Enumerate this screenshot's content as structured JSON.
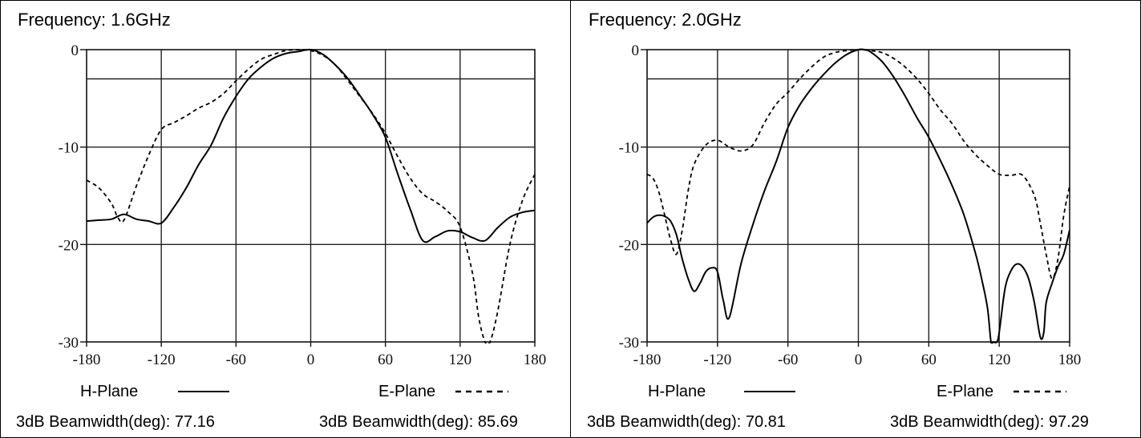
{
  "panels": [
    {
      "frequency_label": "Frequency: 1.6GHz",
      "legend": {
        "h_plane": "H-Plane",
        "e_plane": "E-Plane"
      },
      "beamwidths": {
        "h_plane": "3dB Beamwidth(deg): 77.16",
        "e_plane": "3dB Beamwidth(deg): 85.69"
      }
    },
    {
      "frequency_label": "Frequency: 2.0GHz",
      "legend": {
        "h_plane": "H-Plane",
        "e_plane": "E-Plane"
      },
      "beamwidths": {
        "h_plane": "3dB Beamwidth(deg): 70.81",
        "e_plane": "3dB Beamwidth(deg): 97.29"
      }
    }
  ],
  "chart_data": [
    {
      "type": "line",
      "title": "Frequency: 1.6GHz",
      "xlim": [
        -180,
        180
      ],
      "ylim": [
        -30,
        0
      ],
      "x_ticks": [
        -180,
        -120,
        -60,
        0,
        60,
        120,
        180
      ],
      "y_ticks": [
        0,
        -10,
        -20,
        -30
      ],
      "y_tick_labels": [
        "0",
        "-10",
        "-20",
        "-30"
      ],
      "x_tick_labels": [
        "-180",
        "-120",
        "-60",
        "0",
        "60",
        "120",
        "180"
      ],
      "reference_line_y": -3,
      "grid": true,
      "series": [
        {
          "name": "H-Plane",
          "style": "solid",
          "x": [
            -180,
            -170,
            -160,
            -150,
            -140,
            -130,
            -120,
            -110,
            -100,
            -90,
            -80,
            -70,
            -60,
            -50,
            -40,
            -30,
            -20,
            -10,
            0,
            10,
            20,
            30,
            40,
            50,
            60,
            70,
            80,
            90,
            100,
            110,
            120,
            130,
            140,
            150,
            160,
            170,
            180
          ],
          "y": [
            -17.6,
            -17.5,
            -17.4,
            -16.9,
            -17.4,
            -17.6,
            -17.8,
            -16.2,
            -14.2,
            -11.8,
            -9.8,
            -7.0,
            -4.8,
            -3.0,
            -1.8,
            -0.9,
            -0.4,
            -0.2,
            0.0,
            -0.5,
            -1.6,
            -3.0,
            -4.8,
            -6.7,
            -9.0,
            -12.8,
            -16.4,
            -19.6,
            -19.2,
            -18.6,
            -18.7,
            -19.3,
            -19.6,
            -18.3,
            -17.2,
            -16.7,
            -16.5
          ]
        },
        {
          "name": "E-Plane",
          "style": "dashed",
          "x": [
            -180,
            -170,
            -160,
            -155,
            -150,
            -140,
            -130,
            -120,
            -110,
            -100,
            -90,
            -80,
            -70,
            -60,
            -50,
            -40,
            -30,
            -20,
            -10,
            0,
            10,
            20,
            30,
            40,
            50,
            60,
            70,
            80,
            90,
            100,
            110,
            120,
            130,
            135,
            140,
            144,
            150,
            160,
            170,
            180
          ],
          "y": [
            -13.4,
            -14.2,
            -15.8,
            -17.2,
            -17.5,
            -14.0,
            -10.8,
            -8.2,
            -7.5,
            -6.8,
            -6.0,
            -5.4,
            -4.5,
            -3.2,
            -2.0,
            -1.0,
            -0.5,
            -0.1,
            0.0,
            -0.1,
            -0.6,
            -1.6,
            -3.2,
            -4.9,
            -6.6,
            -8.6,
            -11.0,
            -13.2,
            -14.8,
            -15.6,
            -16.6,
            -18.2,
            -23.0,
            -27.5,
            -30.0,
            -30.0,
            -27.0,
            -20.0,
            -15.5,
            -12.8
          ]
        }
      ]
    },
    {
      "type": "line",
      "title": "Frequency: 2.0GHz",
      "xlim": [
        -180,
        180
      ],
      "ylim": [
        -30,
        0
      ],
      "x_ticks": [
        -180,
        -120,
        -60,
        0,
        60,
        120,
        180
      ],
      "y_ticks": [
        0,
        -10,
        -20,
        -30
      ],
      "y_tick_labels": [
        "0",
        "-10",
        "-20",
        "-30"
      ],
      "x_tick_labels": [
        "-180",
        "-120",
        "-60",
        "0",
        "60",
        "120",
        "180"
      ],
      "reference_line_y": -3,
      "grid": true,
      "series": [
        {
          "name": "H-Plane",
          "style": "solid",
          "x": [
            -180,
            -175,
            -170,
            -165,
            -160,
            -155,
            -150,
            -145,
            -140,
            -135,
            -130,
            -125,
            -120,
            -115,
            -110,
            -100,
            -90,
            -80,
            -70,
            -60,
            -50,
            -40,
            -30,
            -20,
            -10,
            0,
            5,
            10,
            20,
            30,
            40,
            50,
            60,
            70,
            80,
            90,
            100,
            105,
            110,
            113,
            115,
            118,
            120,
            125,
            130,
            135,
            140,
            145,
            150,
            155,
            158,
            160,
            165,
            170,
            175,
            180
          ],
          "y": [
            -17.8,
            -17.2,
            -17.0,
            -17.1,
            -17.6,
            -19.0,
            -21.5,
            -23.5,
            -24.8,
            -24.0,
            -22.8,
            -22.4,
            -22.8,
            -25.8,
            -27.5,
            -22.0,
            -18.0,
            -14.5,
            -11.5,
            -8.0,
            -5.7,
            -4.0,
            -2.6,
            -1.4,
            -0.5,
            0.0,
            0.0,
            -0.2,
            -1.2,
            -2.8,
            -4.8,
            -7.0,
            -9.0,
            -11.4,
            -14.0,
            -17.0,
            -21.0,
            -23.5,
            -26.5,
            -30.0,
            -30.0,
            -30.0,
            -29.0,
            -24.5,
            -22.7,
            -22.0,
            -22.3,
            -23.5,
            -26.0,
            -29.5,
            -29.0,
            -26.0,
            -24.0,
            -22.3,
            -21.0,
            -18.5
          ]
        },
        {
          "name": "E-Plane",
          "style": "dashed",
          "x": [
            -180,
            -175,
            -170,
            -165,
            -160,
            -155,
            -150,
            -145,
            -140,
            -130,
            -120,
            -110,
            -100,
            -90,
            -80,
            -70,
            -60,
            -50,
            -40,
            -30,
            -20,
            -10,
            0,
            10,
            20,
            30,
            40,
            50,
            60,
            70,
            80,
            90,
            100,
            110,
            120,
            130,
            140,
            150,
            155,
            160,
            165,
            170,
            175,
            180
          ],
          "y": [
            -12.8,
            -13.2,
            -14.6,
            -17.0,
            -19.5,
            -21.0,
            -18.5,
            -14.5,
            -11.8,
            -9.8,
            -9.3,
            -10.0,
            -10.4,
            -9.8,
            -7.5,
            -5.6,
            -4.4,
            -3.0,
            -1.8,
            -0.8,
            -0.3,
            -0.1,
            0.0,
            -0.1,
            -0.3,
            -0.9,
            -1.8,
            -3.0,
            -4.5,
            -6.2,
            -7.6,
            -9.4,
            -10.8,
            -11.9,
            -12.8,
            -12.9,
            -12.9,
            -15.0,
            -17.8,
            -21.0,
            -23.5,
            -21.5,
            -17.0,
            -14.0
          ]
        }
      ]
    }
  ]
}
